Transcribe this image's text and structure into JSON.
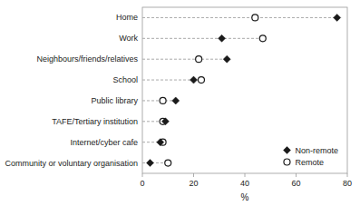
{
  "chart_data": {
    "type": "dot",
    "orientation": "horizontal",
    "categories": [
      "Home",
      "Work",
      "Neighbours/friends/relatives",
      "School",
      "Public library",
      "TAFE/Tertiary institution",
      "Internet/cyber cafe",
      "Community or voluntary organisation"
    ],
    "series": [
      {
        "name": "Non-remote",
        "color": "#1a1a1a",
        "marker": "diamond",
        "values": [
          76,
          31,
          33,
          20,
          13,
          9,
          7,
          3
        ]
      },
      {
        "name": "Remote",
        "color": "#1a1a1a",
        "marker": "circle",
        "values": [
          44,
          47,
          22,
          23,
          8,
          8,
          8,
          10
        ]
      }
    ],
    "xlabel": "%",
    "xlim": [
      0,
      80
    ],
    "xticks": [
      0,
      20,
      40,
      60,
      80
    ],
    "line_style": "dashed",
    "legend": "lower right",
    "grid": false
  }
}
